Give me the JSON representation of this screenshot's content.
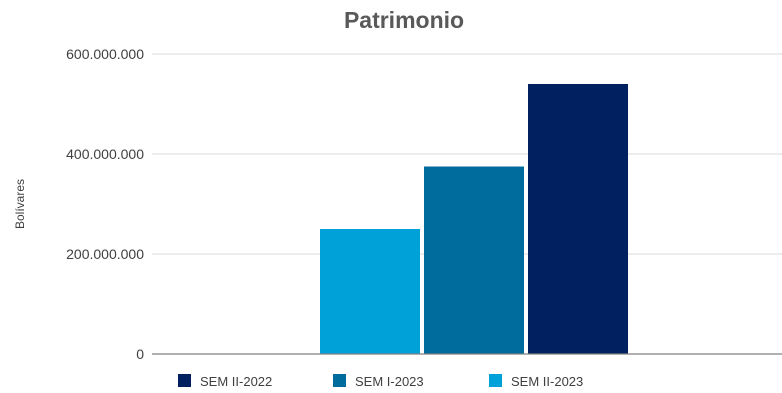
{
  "chart_data": {
    "type": "bar",
    "title": "Patrimonio",
    "ylabel": "Bolívares",
    "xlabel": "",
    "ylim": [
      0,
      600000000
    ],
    "yticks": [
      0,
      200000000,
      400000000,
      600000000
    ],
    "ytick_labels": [
      "0",
      "200.000.000",
      "400.000.000",
      "600.000.000"
    ],
    "grid": true,
    "legend_position": "bottom",
    "series": [
      {
        "name": "SEM II-2023",
        "value": 250000000,
        "color": "#00A0D8"
      },
      {
        "name": "SEM I-2023",
        "value": 375000000,
        "color": "#006C9E"
      },
      {
        "name": "SEM II-2022",
        "value": 540000000,
        "color": "#002060"
      }
    ],
    "legend_order": [
      "SEM II-2022",
      "SEM I-2023",
      "SEM II-2023"
    ]
  }
}
